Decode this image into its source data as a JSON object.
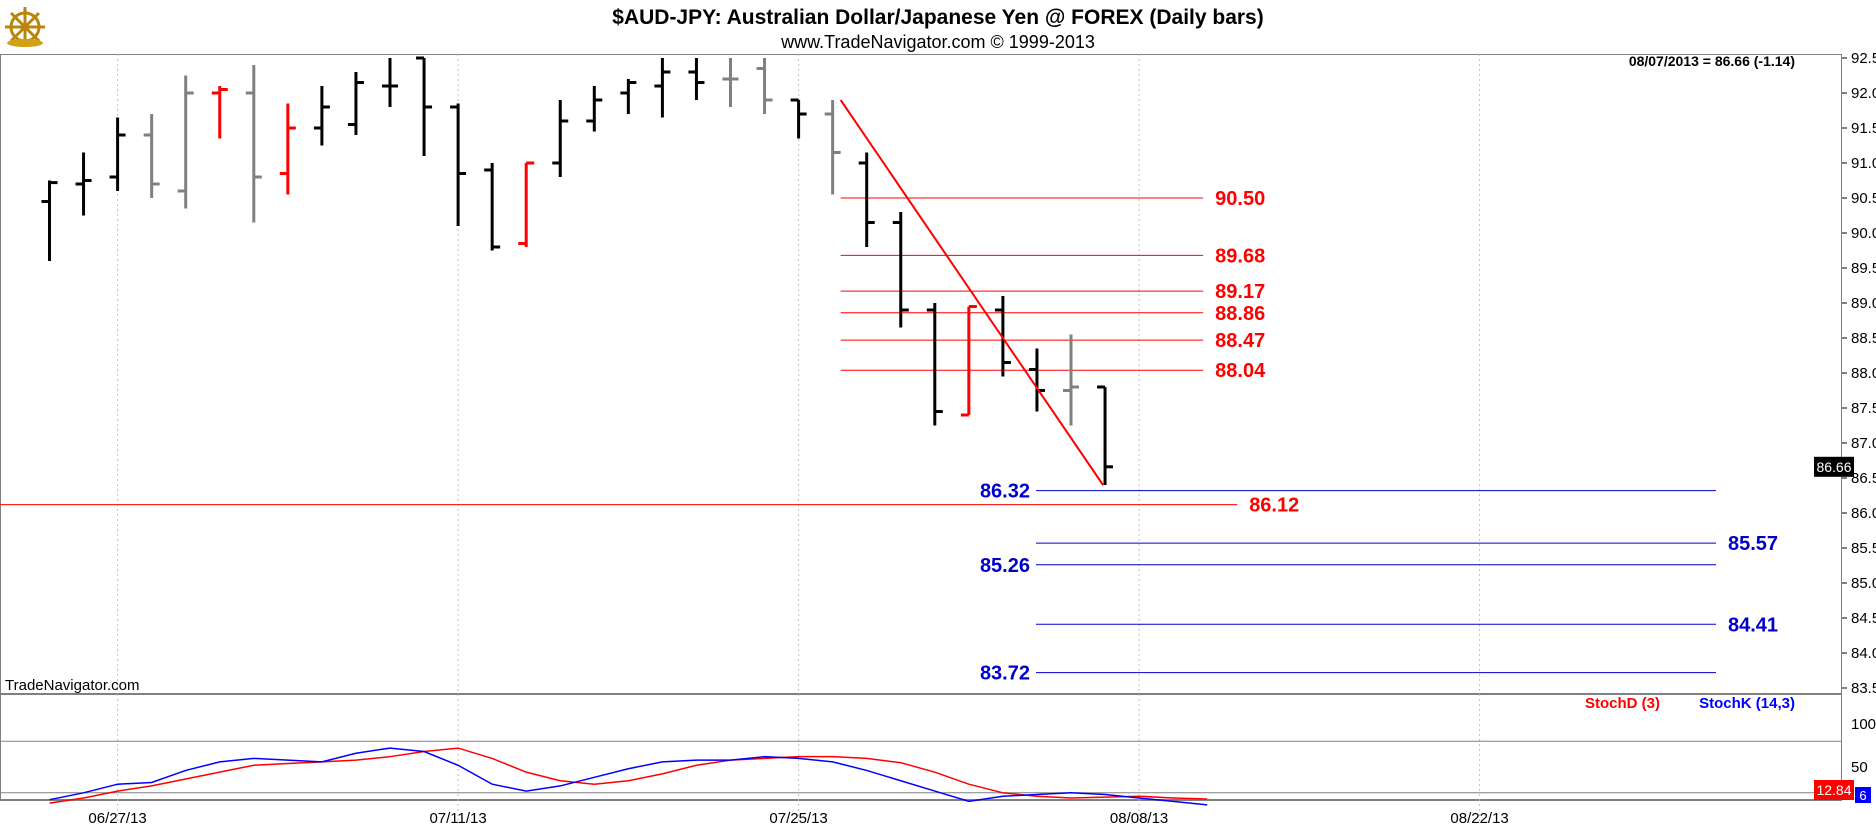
{
  "header": {
    "title": "$AUD-JPY:  Australian Dollar/Japanese Yen @ FOREX  (Daily bars)",
    "subtitle": "www.TradeNavigator.com © 1999-2013",
    "last_quote": "08/07/2013 = 86.66 (-1.14)",
    "watermark": "TradeNavigator.com",
    "logo_icon": "ship-wheel-logo-icon"
  },
  "colors": {
    "up_bar": "#000000",
    "down_bar": "#808080",
    "reversal_bar": "#ff0000",
    "resistance_line": "#ff0000",
    "support_line": "#0000cc",
    "stoch_d": "#ff0000",
    "stoch_k": "#0000ff",
    "grid": "#c0c0c0"
  },
  "chart_data": [
    {
      "type": "ohlc",
      "name": "price",
      "ylim": [
        83.5,
        92.5
      ],
      "yticks": [
        "92.50",
        "92.00",
        "91.50",
        "91.00",
        "90.50",
        "90.00",
        "89.50",
        "89.00",
        "88.50",
        "88.00",
        "87.50",
        "87.00",
        "86.50",
        "86.00",
        "85.50",
        "85.00",
        "84.50",
        "84.00",
        "83.50"
      ],
      "xticks": [
        {
          "index": 2,
          "label": "06/27/13"
        },
        {
          "index": 12,
          "label": "07/11/13"
        },
        {
          "index": 22,
          "label": "07/25/13"
        },
        {
          "index": 32,
          "label": "08/08/13"
        },
        {
          "index": 42,
          "label": "08/22/13"
        }
      ],
      "last_price_label": "86.66",
      "bars": [
        {
          "o": 90.45,
          "h": 90.75,
          "l": 89.6,
          "c": 90.72,
          "color": "black"
        },
        {
          "o": 90.7,
          "h": 91.15,
          "l": 90.25,
          "c": 90.75,
          "color": "black"
        },
        {
          "o": 90.8,
          "h": 91.65,
          "l": 90.6,
          "c": 91.4,
          "color": "black"
        },
        {
          "o": 91.4,
          "h": 91.7,
          "l": 90.5,
          "c": 90.7,
          "color": "gray"
        },
        {
          "o": 90.6,
          "h": 92.25,
          "l": 90.35,
          "c": 92.0,
          "color": "gray"
        },
        {
          "o": 92.0,
          "h": 92.1,
          "l": 91.35,
          "c": 92.05,
          "color": "red"
        },
        {
          "o": 92.0,
          "h": 92.4,
          "l": 90.15,
          "c": 90.8,
          "color": "gray"
        },
        {
          "o": 90.85,
          "h": 91.85,
          "l": 90.55,
          "c": 91.5,
          "color": "red"
        },
        {
          "o": 91.5,
          "h": 92.1,
          "l": 91.25,
          "c": 91.8,
          "color": "black"
        },
        {
          "o": 91.55,
          "h": 92.3,
          "l": 91.4,
          "c": 92.15,
          "color": "black"
        },
        {
          "o": 92.1,
          "h": 92.5,
          "l": 91.8,
          "c": 92.1,
          "color": "black"
        },
        {
          "o": 92.5,
          "h": 92.5,
          "l": 91.1,
          "c": 91.8,
          "color": "black"
        },
        {
          "o": 91.8,
          "h": 91.85,
          "l": 90.1,
          "c": 90.85,
          "color": "black"
        },
        {
          "o": 90.9,
          "h": 91.0,
          "l": 89.75,
          "c": 89.8,
          "color": "black"
        },
        {
          "o": 89.85,
          "h": 91.0,
          "l": 89.8,
          "c": 91.0,
          "color": "red"
        },
        {
          "o": 91.0,
          "h": 91.9,
          "l": 90.8,
          "c": 91.6,
          "color": "black"
        },
        {
          "o": 91.6,
          "h": 92.1,
          "l": 91.45,
          "c": 91.9,
          "color": "black"
        },
        {
          "o": 92.0,
          "h": 92.2,
          "l": 91.7,
          "c": 92.15,
          "color": "black"
        },
        {
          "o": 92.1,
          "h": 92.5,
          "l": 91.65,
          "c": 92.3,
          "color": "black"
        },
        {
          "o": 92.3,
          "h": 92.5,
          "l": 91.9,
          "c": 92.15,
          "color": "black"
        },
        {
          "o": 92.2,
          "h": 92.5,
          "l": 91.8,
          "c": 92.2,
          "color": "gray"
        },
        {
          "o": 92.35,
          "h": 92.5,
          "l": 91.7,
          "c": 91.9,
          "color": "gray"
        },
        {
          "o": 91.9,
          "h": 91.9,
          "l": 91.35,
          "c": 91.7,
          "color": "black"
        },
        {
          "o": 91.7,
          "h": 91.9,
          "l": 90.55,
          "c": 91.15,
          "color": "gray"
        },
        {
          "o": 91.0,
          "h": 91.15,
          "l": 89.8,
          "c": 90.15,
          "color": "black"
        },
        {
          "o": 90.15,
          "h": 90.3,
          "l": 88.65,
          "c": 88.9,
          "color": "black"
        },
        {
          "o": 88.9,
          "h": 89.0,
          "l": 87.25,
          "c": 87.45,
          "color": "black"
        },
        {
          "o": 87.4,
          "h": 88.95,
          "l": 87.4,
          "c": 88.95,
          "color": "red"
        },
        {
          "o": 88.9,
          "h": 89.1,
          "l": 87.95,
          "c": 88.15,
          "color": "black"
        },
        {
          "o": 88.05,
          "h": 88.35,
          "l": 87.45,
          "c": 87.75,
          "color": "black"
        },
        {
          "o": 87.75,
          "h": 88.55,
          "l": 87.25,
          "c": 87.8,
          "color": "gray"
        },
        {
          "o": 87.8,
          "h": 87.8,
          "l": 86.4,
          "c": 86.66,
          "color": "black"
        }
      ],
      "trendline": {
        "from": {
          "index": 23,
          "price": 91.9
        },
        "to": {
          "index": 31,
          "price": 86.4
        }
      },
      "resistance_levels": [
        {
          "label": "90.50",
          "value": 90.5,
          "start_index": 23,
          "end_index": 33
        },
        {
          "label": "89.68",
          "value": 89.68,
          "start_index": 23,
          "end_index": 33
        },
        {
          "label": "89.17",
          "value": 89.17,
          "start_index": 23,
          "end_index": 33
        },
        {
          "label": "88.86",
          "value": 88.86,
          "start_index": 23,
          "end_index": 33
        },
        {
          "label": "88.47",
          "value": 88.47,
          "start_index": 23,
          "end_index": 33
        },
        {
          "label": "88.04",
          "value": 88.04,
          "start_index": 23,
          "end_index": 33
        },
        {
          "label": "86.12",
          "value": 86.12,
          "start_index": -1,
          "end_index": 34
        }
      ],
      "support_levels": [
        {
          "label": "86.32",
          "value": 86.32,
          "start_index": 29,
          "end_index": 50,
          "label_side": "left"
        },
        {
          "label": "85.57",
          "value": 85.57,
          "start_index": 29,
          "end_index": 50,
          "label_side": "right"
        },
        {
          "label": "85.26",
          "value": 85.26,
          "start_index": 29,
          "end_index": 50,
          "label_side": "left"
        },
        {
          "label": "84.41",
          "value": 84.41,
          "start_index": 29,
          "end_index": 50,
          "label_side": "right"
        },
        {
          "label": "83.72",
          "value": 83.72,
          "start_index": 29,
          "end_index": 50,
          "label_side": "left"
        }
      ]
    },
    {
      "type": "line",
      "name": "stochastic",
      "ylim": [
        0,
        100
      ],
      "yticks": [
        "100",
        "50"
      ],
      "reference_levels": [
        80,
        20
      ],
      "last_value_label": "12.84",
      "last_value_label_partial": "6",
      "legend": [
        "StochD (3)",
        "StochK (14,3)"
      ],
      "series": [
        {
          "name": "StochD (3)",
          "color": "#ff0000",
          "values": [
            8,
            14,
            22,
            28,
            36,
            44,
            52,
            54,
            56,
            58,
            62,
            68,
            72,
            60,
            44,
            34,
            30,
            34,
            42,
            52,
            58,
            60,
            62,
            62,
            60,
            55,
            44,
            30,
            20,
            16,
            14,
            15,
            16,
            14,
            12.84
          ]
        },
        {
          "name": "StochK (14,3)",
          "color": "#0000ff",
          "values": [
            12,
            20,
            30,
            32,
            46,
            56,
            60,
            58,
            56,
            66,
            72,
            68,
            52,
            30,
            22,
            28,
            38,
            48,
            56,
            58,
            58,
            62,
            60,
            56,
            46,
            34,
            22,
            10,
            16,
            18,
            20,
            18,
            14,
            10,
            6
          ]
        }
      ]
    }
  ]
}
